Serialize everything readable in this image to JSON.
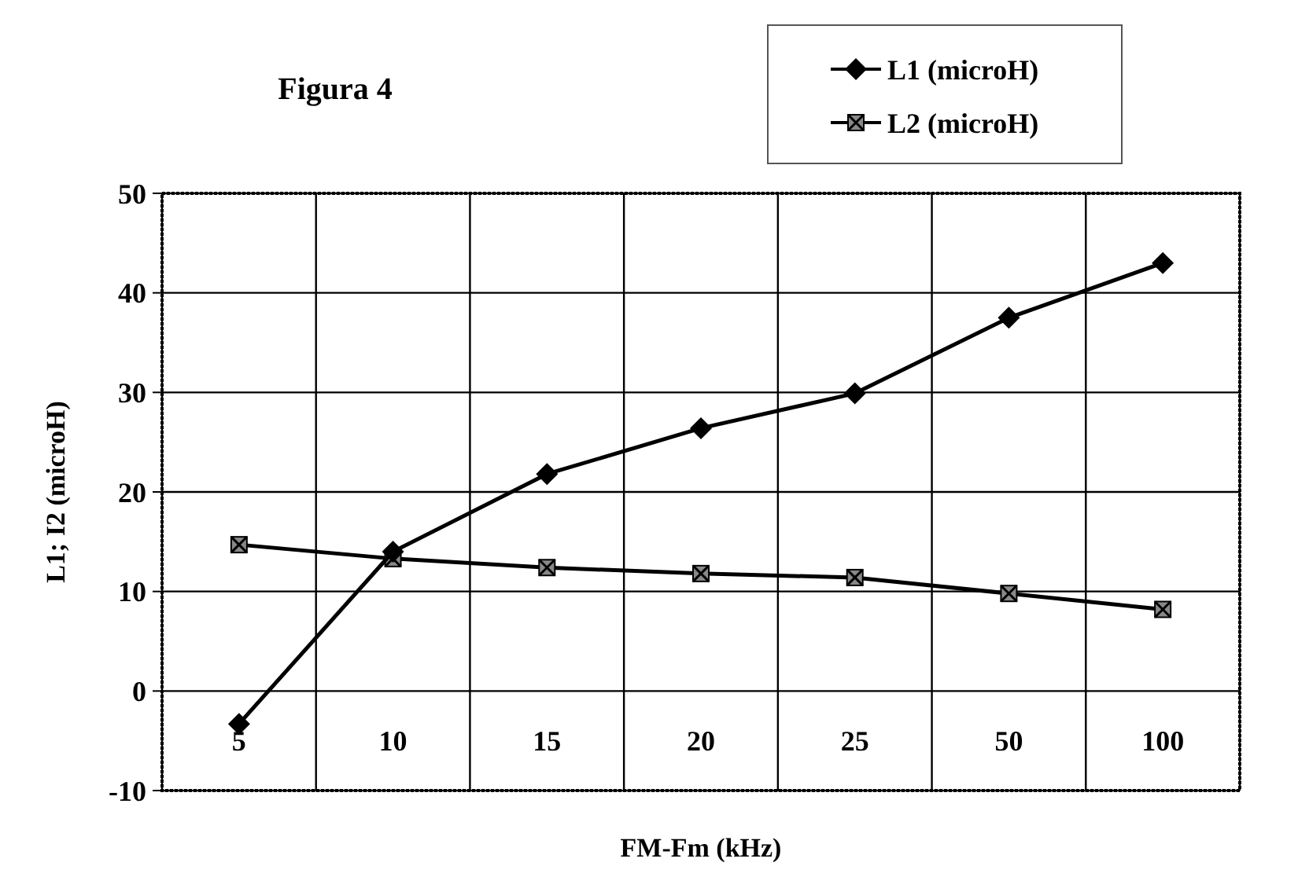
{
  "chart_data": {
    "type": "line",
    "title": "Figura 4",
    "xlabel": "FM-Fm (kHz)",
    "ylabel": "L1; I2 (microH)",
    "categories": [
      "5",
      "10",
      "15",
      "20",
      "25",
      "50",
      "100"
    ],
    "series": [
      {
        "name": "L1 (microH)",
        "color": "#000000",
        "marker": "diamond",
        "values": [
          -3.3,
          14.0,
          21.8,
          26.4,
          29.9,
          37.5,
          43.0
        ]
      },
      {
        "name": "L2 (microH)",
        "color": "#000000",
        "marker": "square",
        "values": [
          14.7,
          13.3,
          12.4,
          11.8,
          11.4,
          9.8,
          8.2
        ]
      }
    ],
    "ylim": [
      -10,
      50
    ],
    "yticks": [
      -10,
      0,
      10,
      20,
      30,
      40,
      50
    ],
    "grid": true,
    "legend": "top right",
    "line_style": "solid"
  }
}
